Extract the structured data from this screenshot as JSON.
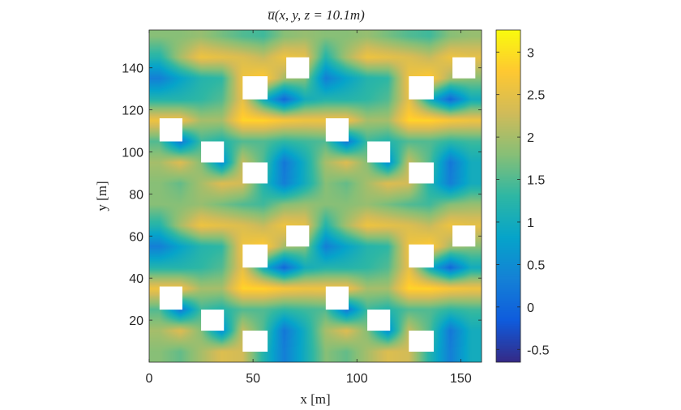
{
  "chart_data": {
    "type": "heatmap",
    "title": "u̅(x, y, z = 10.1m)",
    "xlabel": "x [m]",
    "ylabel": "y [m]",
    "xlim": [
      0,
      160
    ],
    "ylim": [
      0,
      158
    ],
    "xticks": [
      0,
      50,
      100,
      150
    ],
    "yticks": [
      20,
      40,
      60,
      80,
      100,
      120,
      140
    ],
    "colormap": "parula",
    "clim": [
      -0.65,
      3.26
    ],
    "colorbar_ticks": [
      -0.5,
      0,
      0.5,
      1,
      1.5,
      2,
      2.5,
      3
    ],
    "colorbar_tick_labels": [
      "-0.5",
      "0",
      "0.5",
      "1",
      "1.5",
      "2",
      "2.5",
      "3"
    ],
    "grid_x_centers": [
      5,
      15,
      25,
      35,
      45,
      55,
      65,
      75,
      85,
      95,
      105,
      115,
      125,
      135,
      145,
      155
    ],
    "grid_y_centers": [
      5,
      15,
      25,
      35,
      45,
      55,
      65,
      75,
      85,
      95,
      105,
      115,
      125,
      135,
      145,
      155
    ],
    "u_values_rows_bottom_to_top": [
      [
        1.8,
        1.6,
        2.0,
        2.4,
        2.3,
        1.2,
        0.3,
        1.0,
        1.8,
        1.6,
        2.0,
        2.4,
        2.3,
        1.2,
        0.3,
        1.0
      ],
      [
        2.0,
        2.4,
        1.8,
        0.5,
        2.2,
        1.5,
        0.2,
        1.0,
        2.0,
        2.4,
        1.8,
        0.5,
        2.2,
        1.5,
        0.2,
        1.0
      ],
      [
        1.5,
        0.2,
        1.4,
        1.2,
        1.5,
        1.5,
        1.3,
        1.4,
        1.5,
        0.2,
        1.4,
        1.2,
        1.5,
        1.5,
        1.3,
        1.4
      ],
      [
        2.6,
        2.6,
        2.0,
        2.0,
        2.9,
        2.9,
        2.7,
        2.6,
        2.6,
        2.6,
        2.0,
        2.0,
        2.9,
        2.9,
        2.7,
        2.6
      ],
      [
        1.2,
        1.2,
        1.3,
        1.5,
        2.5,
        1.0,
        0.0,
        1.0,
        1.2,
        1.2,
        1.3,
        1.5,
        2.5,
        1.0,
        0.0,
        1.0
      ],
      [
        0.3,
        0.8,
        1.2,
        1.3,
        2.6,
        2.8,
        2.0,
        1.8,
        0.3,
        0.8,
        1.2,
        1.3,
        2.6,
        2.8,
        2.0,
        1.8
      ],
      [
        1.2,
        2.0,
        2.6,
        2.5,
        2.4,
        2.2,
        2.6,
        2.5,
        1.2,
        2.0,
        2.6,
        2.5,
        2.4,
        2.2,
        2.6,
        2.5
      ],
      [
        1.8,
        1.8,
        1.9,
        1.7,
        1.5,
        1.4,
        1.8,
        1.9,
        1.8,
        1.8,
        1.9,
        1.7,
        1.5,
        1.4,
        1.8,
        1.9
      ],
      [
        1.8,
        1.6,
        2.0,
        2.4,
        2.3,
        1.2,
        0.3,
        1.0,
        1.8,
        1.6,
        2.0,
        2.4,
        2.3,
        1.2,
        0.3,
        1.0
      ],
      [
        2.0,
        2.4,
        1.8,
        0.5,
        2.2,
        1.5,
        0.2,
        1.0,
        2.0,
        2.4,
        1.8,
        0.5,
        2.2,
        1.5,
        0.2,
        1.0
      ],
      [
        1.5,
        0.2,
        1.4,
        1.2,
        1.5,
        1.5,
        1.3,
        1.4,
        1.5,
        0.2,
        1.4,
        1.2,
        1.5,
        1.5,
        1.3,
        1.4
      ],
      [
        2.6,
        2.6,
        2.0,
        2.0,
        2.9,
        2.9,
        2.7,
        2.6,
        2.6,
        2.6,
        2.0,
        2.0,
        2.9,
        2.9,
        2.7,
        2.6
      ],
      [
        1.2,
        1.2,
        1.3,
        1.5,
        2.5,
        1.0,
        0.0,
        1.0,
        1.2,
        1.2,
        1.3,
        1.5,
        2.5,
        1.0,
        0.0,
        1.0
      ],
      [
        0.3,
        0.8,
        1.2,
        1.3,
        2.6,
        2.8,
        2.0,
        1.8,
        0.3,
        0.8,
        1.2,
        1.3,
        2.6,
        2.8,
        2.0,
        1.8
      ],
      [
        1.2,
        2.0,
        2.6,
        2.5,
        2.4,
        2.2,
        2.6,
        2.5,
        1.2,
        2.0,
        2.6,
        2.5,
        2.4,
        2.2,
        2.6,
        2.5
      ],
      [
        1.8,
        1.8,
        1.9,
        1.7,
        1.5,
        1.4,
        1.8,
        1.9,
        1.8,
        1.8,
        1.9,
        1.7,
        1.5,
        1.4,
        1.8,
        1.9
      ]
    ],
    "buildings": [
      {
        "x": [
          5,
          16
        ],
        "y": [
          25,
          36
        ]
      },
      {
        "x": [
          25,
          36
        ],
        "y": [
          15,
          25
        ]
      },
      {
        "x": [
          45,
          57
        ],
        "y": [
          5,
          15
        ]
      },
      {
        "x": [
          66,
          77
        ],
        "y": [
          55,
          65
        ]
      },
      {
        "x": [
          45,
          57
        ],
        "y": [
          45,
          56
        ]
      },
      {
        "x": [
          85,
          96
        ],
        "y": [
          25,
          36
        ]
      },
      {
        "x": [
          105,
          116
        ],
        "y": [
          15,
          25
        ]
      },
      {
        "x": [
          125,
          137
        ],
        "y": [
          5,
          15
        ]
      },
      {
        "x": [
          146,
          157
        ],
        "y": [
          55,
          65
        ]
      },
      {
        "x": [
          125,
          137
        ],
        "y": [
          45,
          56
        ]
      },
      {
        "x": [
          5,
          16
        ],
        "y": [
          105,
          116
        ]
      },
      {
        "x": [
          25,
          36
        ],
        "y": [
          95,
          105
        ]
      },
      {
        "x": [
          45,
          57
        ],
        "y": [
          85,
          95
        ]
      },
      {
        "x": [
          66,
          77
        ],
        "y": [
          135,
          145
        ]
      },
      {
        "x": [
          45,
          57
        ],
        "y": [
          125,
          136
        ]
      },
      {
        "x": [
          85,
          96
        ],
        "y": [
          105,
          116
        ]
      },
      {
        "x": [
          105,
          116
        ],
        "y": [
          95,
          105
        ]
      },
      {
        "x": [
          125,
          137
        ],
        "y": [
          85,
          95
        ]
      },
      {
        "x": [
          146,
          157
        ],
        "y": [
          135,
          145
        ]
      },
      {
        "x": [
          125,
          137
        ],
        "y": [
          125,
          136
        ]
      }
    ],
    "building_color": "#ffffff"
  }
}
